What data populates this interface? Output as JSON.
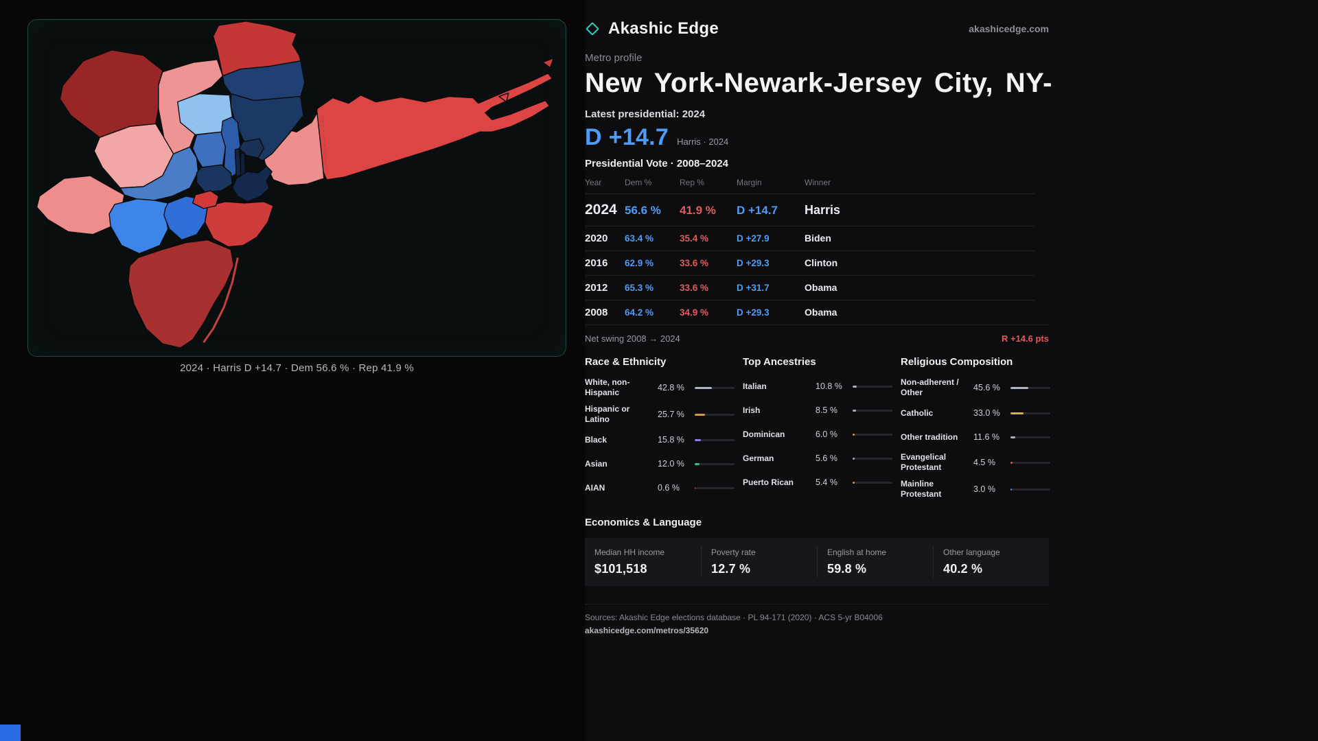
{
  "brand": {
    "name": "Akashic Edge",
    "site": "akashicedge.com"
  },
  "profile": {
    "kicker": "Metro profile",
    "title": "New York-Newark-Jersey City, NY-",
    "latest_label": "Latest presidential: 2024",
    "headline_margin": "D +14.7",
    "headline_note": "Harris · 2024"
  },
  "map_panel": {
    "caption": "2024 · Harris D +14.7 · Dem 56.6 % · Rep 41.9 %"
  },
  "vote_table": {
    "title": "Presidential Vote · 2008–2024",
    "columns": {
      "year": "Year",
      "dem": "Dem %",
      "rep": "Rep %",
      "margin": "Margin",
      "winner": "Winner"
    },
    "rows": [
      {
        "year": "2024",
        "dem": "56.6 %",
        "rep": "41.9 %",
        "margin": "D +14.7",
        "winner": "Harris"
      },
      {
        "year": "2020",
        "dem": "63.4 %",
        "rep": "35.4 %",
        "margin": "D +27.9",
        "winner": "Biden"
      },
      {
        "year": "2016",
        "dem": "62.9 %",
        "rep": "33.6 %",
        "margin": "D +29.3",
        "winner": "Clinton"
      },
      {
        "year": "2012",
        "dem": "65.3 %",
        "rep": "33.6 %",
        "margin": "D +31.7",
        "winner": "Obama"
      },
      {
        "year": "2008",
        "dem": "64.2 %",
        "rep": "34.9 %",
        "margin": "D +29.3",
        "winner": "Obama"
      }
    ],
    "net_swing": {
      "label": "Net swing 2008 → 2024",
      "value": "R +14.6 pts"
    }
  },
  "demographics": {
    "race": {
      "title": "Race & Ethnicity",
      "rows": [
        {
          "label": "White, non-Hispanic",
          "value": "42.8 %",
          "pct": 42.8,
          "color": "#aeb6c6"
        },
        {
          "label": "Hispanic or Latino",
          "value": "25.7 %",
          "pct": 25.7,
          "color": "#d79c36"
        },
        {
          "label": "Black",
          "value": "15.8 %",
          "pct": 15.8,
          "color": "#8f7df0"
        },
        {
          "label": "Asian",
          "value": "12.0 %",
          "pct": 12.0,
          "color": "#31c28e"
        },
        {
          "label": "AIAN",
          "value": "0.6 %",
          "pct": 0.6,
          "color": "#d95b5b"
        }
      ]
    },
    "ancestry": {
      "title": "Top Ancestries",
      "rows": [
        {
          "label": "Italian",
          "value": "10.8 %",
          "pct": 10.8,
          "color": "#a7afbf"
        },
        {
          "label": "Irish",
          "value": "8.5 %",
          "pct": 8.5,
          "color": "#a7afbf"
        },
        {
          "label": "Dominican",
          "value": "6.0 %",
          "pct": 6.0,
          "color": "#d79c36"
        },
        {
          "label": "German",
          "value": "5.6 %",
          "pct": 5.6,
          "color": "#a7afbf"
        },
        {
          "label": "Puerto Rican",
          "value": "5.4 %",
          "pct": 5.4,
          "color": "#d79c36"
        }
      ]
    },
    "religion": {
      "title": "Religious Composition",
      "rows": [
        {
          "label": "Non-adherent / Other",
          "value": "45.6 %",
          "pct": 45.6,
          "color": "#aeb6c6"
        },
        {
          "label": "Catholic",
          "value": "33.0 %",
          "pct": 33.0,
          "color": "#d7b23a"
        },
        {
          "label": "Other tradition",
          "value": "11.6 %",
          "pct": 11.6,
          "color": "#a7afbf"
        },
        {
          "label": "Evangelical Protestant",
          "value": "4.5 %",
          "pct": 4.5,
          "color": "#d95b5b"
        },
        {
          "label": "Mainline Protestant",
          "value": "3.0 %",
          "pct": 3.0,
          "color": "#5a8ef0"
        }
      ]
    }
  },
  "economics": {
    "title": "Economics & Language",
    "stats": [
      {
        "label": "Median HH income",
        "value": "$101,518"
      },
      {
        "label": "Poverty rate",
        "value": "12.7 %"
      },
      {
        "label": "English at home",
        "value": "59.8 %"
      },
      {
        "label": "Other language",
        "value": "40.2 %"
      }
    ]
  },
  "footer": {
    "sources": "Sources: Akashic Edge elections database · PL 94-171 (2020) · ACS 5-yr B04006",
    "permalink": "akashicedge.com/metros/35620"
  },
  "colors": {
    "dem": "#4f9cf7",
    "rep": "#e25b5b",
    "accent_teal": "#2fd4c0"
  }
}
